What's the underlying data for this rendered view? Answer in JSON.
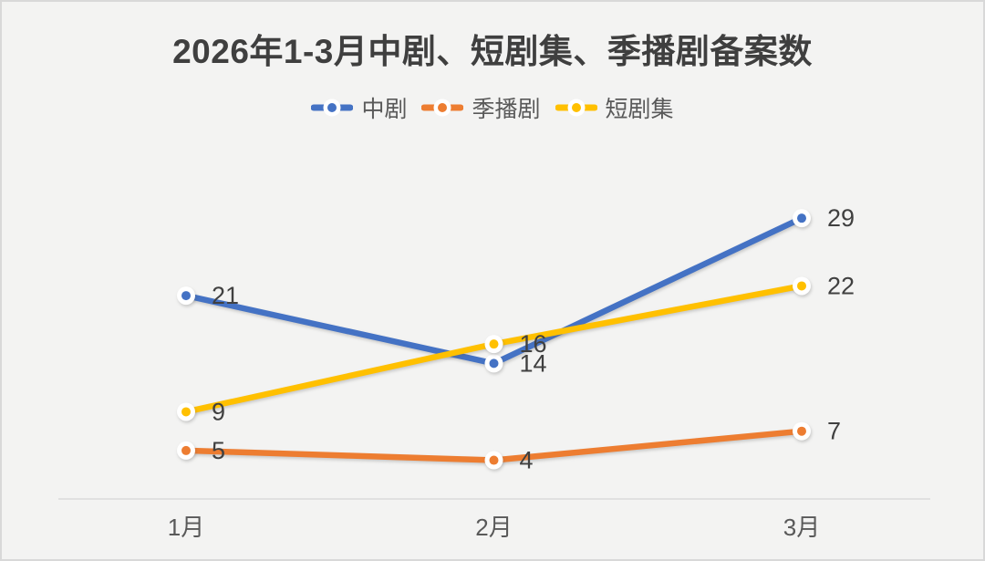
{
  "chart_data": {
    "type": "line",
    "title": "2026年1-3月中剧、短剧集、季播剧备案数",
    "categories": [
      "1月",
      "2月",
      "3月"
    ],
    "series": [
      {
        "name": "中剧",
        "color": "#4472C4",
        "values": [
          21,
          14,
          29
        ]
      },
      {
        "name": "季播剧",
        "color": "#ED7D31",
        "values": [
          5,
          4,
          7
        ]
      },
      {
        "name": "短剧集",
        "color": "#FFC000",
        "values": [
          9,
          16,
          22
        ]
      }
    ],
    "xlabel": "",
    "ylabel": "",
    "ylim": [
      0,
      34
    ],
    "grid": false,
    "y_axis_visible": false,
    "legend_position": "top",
    "data_labels": true,
    "colors": {
      "background": "#F3F3F2",
      "border": "#D8D8D8",
      "axis_line": "#D9D9D9",
      "title_text": "#3F3F3F",
      "legend_text": "#595959",
      "tick_text": "#595959",
      "data_label_text": "#404040",
      "marker_ring": "#FFFFFF"
    }
  }
}
